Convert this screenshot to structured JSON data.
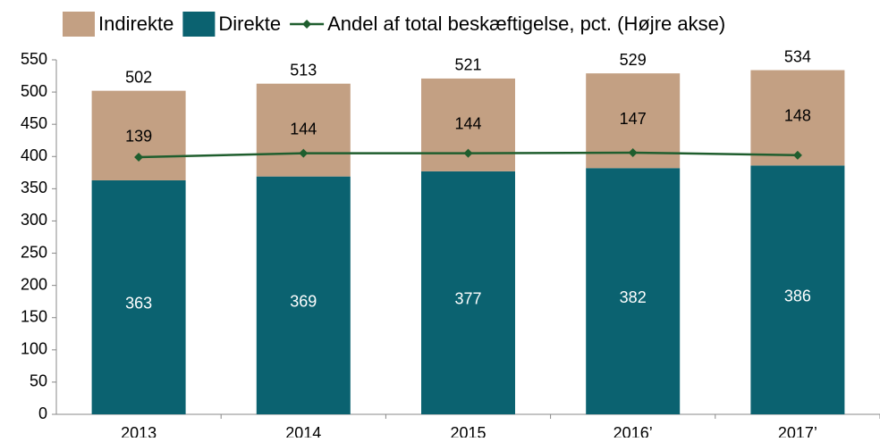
{
  "chart_data": {
    "type": "bar",
    "categories": [
      "2013",
      "2014",
      "2015",
      "2016’",
      "2017’"
    ],
    "stacked": true,
    "series": [
      {
        "name": "Direkte",
        "color": "#0b6270",
        "values": [
          363,
          369,
          377,
          382,
          386
        ]
      },
      {
        "name": "Indirekte",
        "color": "#c3a083",
        "values": [
          139,
          144,
          144,
          147,
          148
        ]
      },
      {
        "name": "Andel af total beskæftigelse, pct. (Højre akse)",
        "type": "line",
        "color": "#1f5e2e",
        "values": [
          399,
          405,
          405,
          406,
          402
        ]
      }
    ],
    "totals": [
      502,
      513,
      521,
      529,
      534
    ],
    "legend_order": [
      1,
      0,
      2
    ],
    "ylim": [
      0,
      550
    ],
    "yticks": [
      0,
      50,
      100,
      150,
      200,
      250,
      300,
      350,
      400,
      450,
      500,
      550
    ]
  }
}
